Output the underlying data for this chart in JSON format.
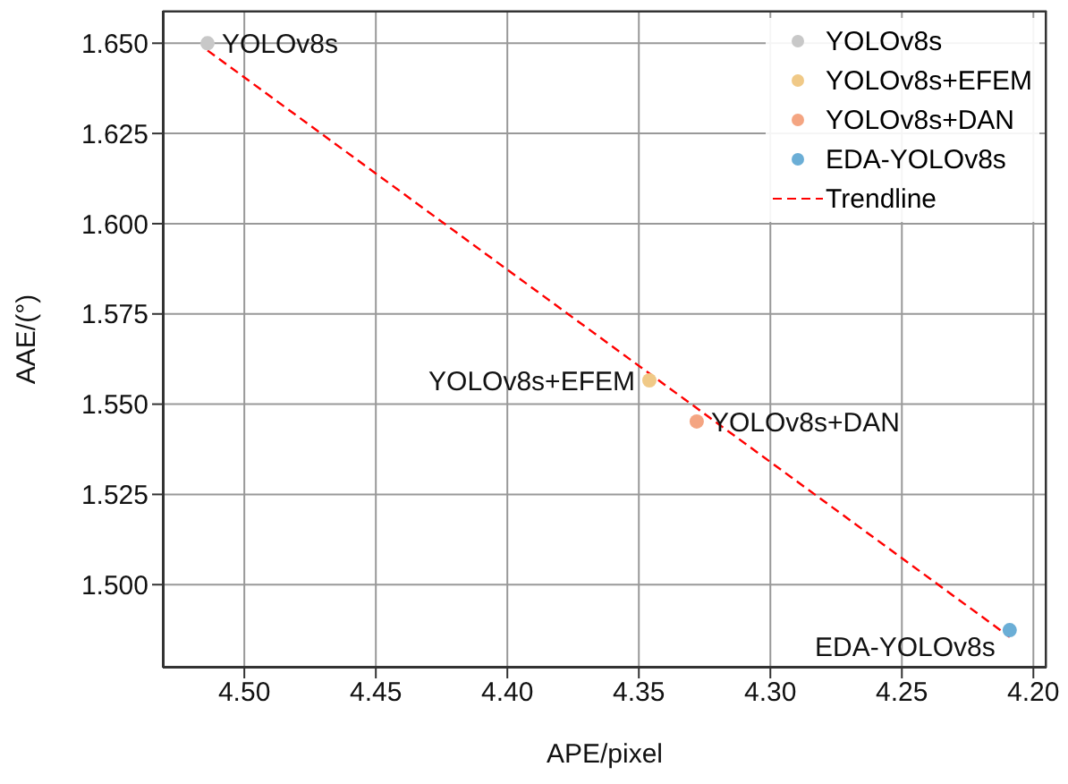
{
  "chart_data": {
    "type": "scatter",
    "xlabel": "APE/pixel",
    "ylabel": "AAE/(°)",
    "xlim": [
      4.531,
      4.195
    ],
    "ylim": [
      1.477,
      1.659
    ],
    "xticks": [
      {
        "value": 4.5,
        "label": "4.50"
      },
      {
        "value": 4.45,
        "label": "4.45"
      },
      {
        "value": 4.4,
        "label": "4.40"
      },
      {
        "value": 4.35,
        "label": "4.35"
      },
      {
        "value": 4.3,
        "label": "4.30"
      },
      {
        "value": 4.25,
        "label": "4.25"
      },
      {
        "value": 4.2,
        "label": "4.20"
      }
    ],
    "yticks": [
      {
        "value": 1.5,
        "label": "1.500"
      },
      {
        "value": 1.525,
        "label": "1.525"
      },
      {
        "value": 1.55,
        "label": "1.550"
      },
      {
        "value": 1.575,
        "label": "1.575"
      },
      {
        "value": 1.6,
        "label": "1.600"
      },
      {
        "value": 1.625,
        "label": "1.625"
      },
      {
        "value": 1.65,
        "label": "1.650"
      }
    ],
    "grid": true,
    "legend": "top right",
    "marker": "circle",
    "series": [
      {
        "name": "YOLOv8s",
        "color": "#c8c8c8",
        "x": [
          4.514
        ],
        "values": [
          1.65
        ]
      },
      {
        "name": "YOLOv8s+EFEM",
        "color": "#f0c987",
        "x": [
          4.346
        ],
        "values": [
          1.5566
        ]
      },
      {
        "name": "YOLOv8s+DAN",
        "color": "#f4a582",
        "x": [
          4.328
        ],
        "values": [
          1.5452
        ]
      },
      {
        "name": "EDA-YOLOv8s",
        "color": "#6baed6",
        "x": [
          4.209
        ],
        "values": [
          1.4874
        ]
      },
      {
        "name": "Trendline",
        "type": "line",
        "line_style": "dashed",
        "marker": "none",
        "color": "#ff0000",
        "x": [
          4.514,
          4.209
        ],
        "values": [
          1.648,
          1.4855
        ]
      }
    ],
    "annotations": [
      {
        "text": "YOLOv8s",
        "x": 4.514,
        "y": 1.65
      },
      {
        "text": "YOLOv8s+EFEM",
        "x": 4.346,
        "y": 1.5566
      },
      {
        "text": "YOLOv8s+DAN",
        "x": 4.328,
        "y": 1.5452
      },
      {
        "text": "EDA-YOLOv8s",
        "x": 4.209,
        "y": 1.4874
      }
    ]
  }
}
